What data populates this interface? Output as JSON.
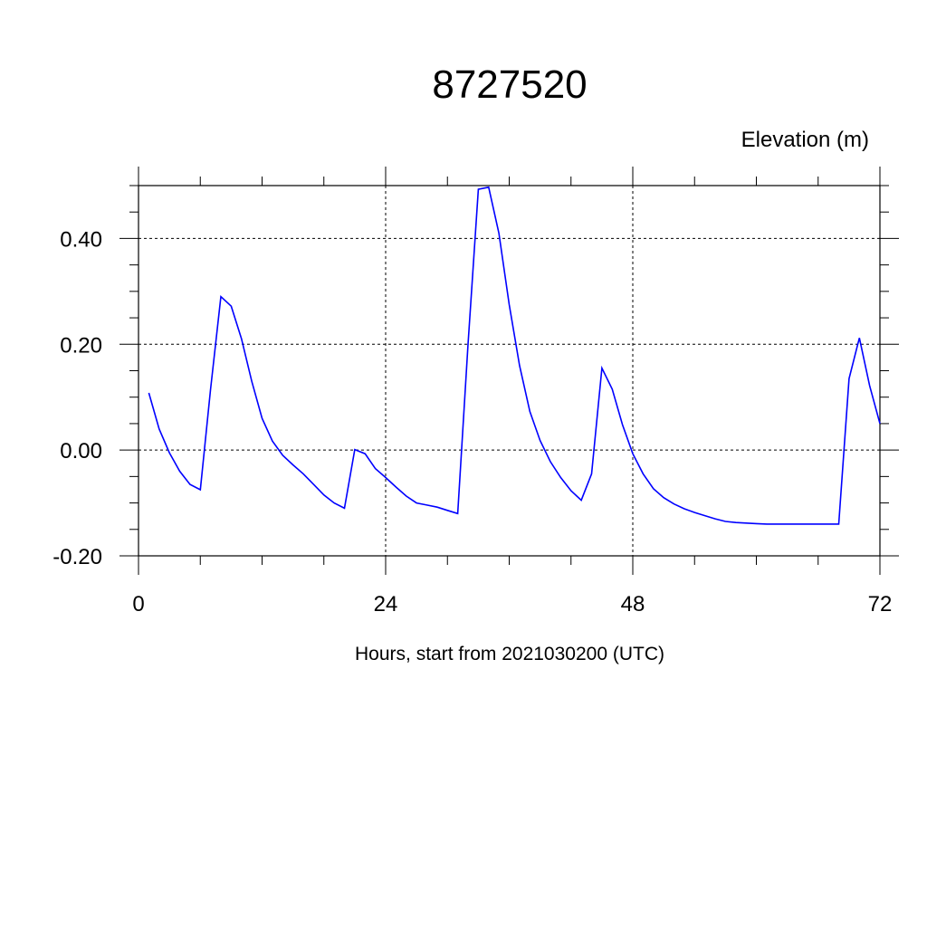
{
  "chart_data": {
    "type": "line",
    "title": "8727520",
    "ylabel": "Elevation (m)",
    "xlabel": "Hours, start from 2021030200 (UTC)",
    "xlim": [
      0,
      72
    ],
    "ylim": [
      -0.2,
      0.5
    ],
    "x_ticks": [
      0,
      24,
      48,
      72
    ],
    "x_tick_labels": [
      "0",
      "24",
      "48",
      "72"
    ],
    "y_ticks": [
      -0.2,
      0.0,
      0.2,
      0.4
    ],
    "y_tick_labels": [
      "-0.20",
      "0.00",
      "0.20",
      "0.40"
    ],
    "grid": true,
    "series": [
      {
        "color": "#0000ff",
        "x": [
          1,
          2,
          3,
          4,
          5,
          6,
          7,
          8,
          9,
          10,
          11,
          12,
          13,
          14,
          15,
          16,
          17,
          18,
          19,
          20,
          21,
          22,
          23,
          24,
          25,
          26,
          27,
          28,
          29,
          30,
          31,
          32,
          33,
          34,
          35,
          36,
          37,
          38,
          39,
          40,
          41,
          42,
          43,
          44,
          45,
          46,
          47,
          48,
          49,
          50,
          51,
          52,
          53,
          54,
          55,
          56,
          57,
          58,
          59,
          60,
          61,
          62,
          63,
          64,
          65,
          66,
          67,
          68,
          69,
          70,
          71,
          72
        ],
        "y": [
          0.108,
          0.04,
          -0.005,
          -0.04,
          -0.065,
          -0.075,
          0.115,
          0.29,
          0.272,
          0.21,
          0.13,
          0.06,
          0.017,
          -0.01,
          -0.028,
          -0.045,
          -0.065,
          -0.085,
          -0.1,
          -0.11,
          0.001,
          -0.007,
          -0.035,
          -0.052,
          -0.07,
          -0.087,
          -0.1,
          -0.104,
          -0.108,
          -0.114,
          -0.12,
          0.2,
          0.493,
          0.497,
          0.41,
          0.275,
          0.16,
          0.073,
          0.018,
          -0.022,
          -0.052,
          -0.077,
          -0.095,
          -0.045,
          0.155,
          0.115,
          0.048,
          -0.007,
          -0.045,
          -0.073,
          -0.09,
          -0.102,
          -0.111,
          -0.118,
          -0.124,
          -0.13,
          -0.135,
          -0.137,
          -0.138,
          -0.139,
          -0.14,
          -0.14,
          -0.14,
          -0.14,
          -0.14,
          -0.14,
          -0.14,
          -0.14,
          0.135,
          0.212,
          0.122,
          0.05
        ]
      }
    ]
  }
}
